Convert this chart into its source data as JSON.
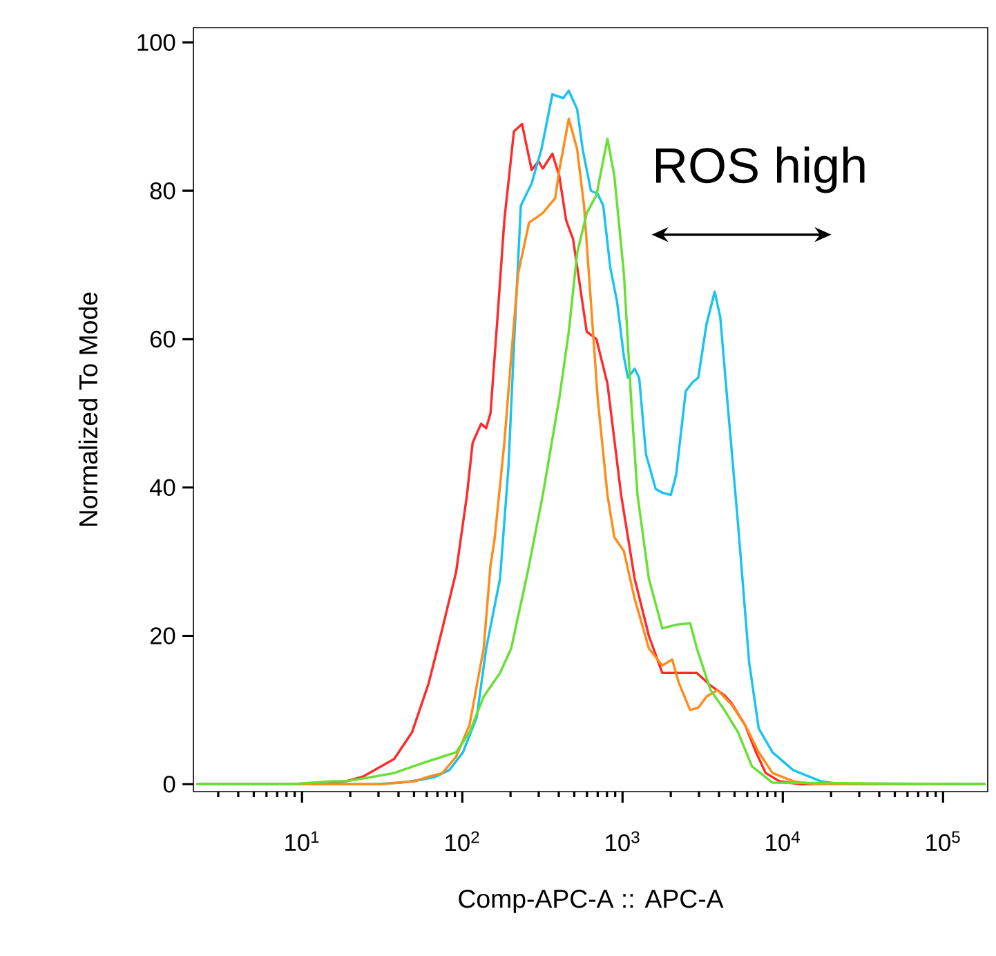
{
  "chart_data": {
    "type": "line",
    "xlabel": "Comp-APC-A :: APC-A",
    "ylabel": "Normalized To Mode",
    "log": "x",
    "xlim": [
      2.1,
      190000
    ],
    "ylim": [
      -1,
      102
    ],
    "xticks": [
      {
        "value": 10,
        "label": "10$^{1}$"
      },
      {
        "value": 100,
        "label": "10$^{2}$"
      },
      {
        "value": 1000,
        "label": "10$^{3}$"
      },
      {
        "value": 10000,
        "label": "10$^{4}$"
      },
      {
        "value": 100000,
        "label": "10$^{5}$"
      }
    ],
    "yticks": [
      0,
      20,
      40,
      60,
      80,
      100
    ],
    "marker": "none",
    "line_style": "solid",
    "annotations": [
      "ROS high"
    ],
    "series": [
      {
        "color": "#ff2a2a",
        "x": [
          2.2,
          12.7,
          18.8,
          23.9,
          37.6,
          48.6,
          61.7,
          75.2,
          91.5,
          107,
          116,
          131,
          141,
          150,
          166,
          183,
          210,
          236,
          271,
          299,
          318,
          365,
          403,
          445,
          491,
          598,
          687,
          805,
          980,
          1190,
          1460,
          1770,
          2910,
          3540,
          4320,
          4760,
          5810,
          6810,
          7820,
          9520,
          12800,
          184000
        ],
        "values": [
          0,
          0,
          0.4,
          1,
          3.4,
          7,
          13.6,
          21,
          28.6,
          39,
          46,
          48.6,
          48,
          50,
          63,
          76,
          88,
          89,
          82.8,
          84,
          83,
          85,
          82,
          76,
          73.5,
          61,
          60,
          54,
          39,
          27.7,
          20,
          15,
          15,
          13.3,
          12,
          11,
          8,
          4.3,
          1.5,
          0.4,
          0,
          0
        ]
      },
      {
        "color": "#19c3f0",
        "x": [
          2.2,
          27.9,
          41.5,
          55.8,
          68.1,
          82.9,
          101,
          123,
          141,
          172,
          194,
          210,
          232,
          271,
          312,
          365,
          427,
          462,
          521,
          564,
          635,
          700,
          758,
          838,
          925,
          1020,
          1080,
          1190,
          1270,
          1400,
          1610,
          1770,
          2000,
          2160,
          2480,
          2740,
          2970,
          3340,
          3760,
          4070,
          4580,
          5260,
          6170,
          7080,
          8630,
          11600,
          17200,
          23200,
          184000
        ],
        "values": [
          0,
          0,
          0.2,
          0.6,
          1,
          1.9,
          4.3,
          9,
          18.3,
          27.7,
          42.6,
          59,
          78,
          81,
          85.6,
          93,
          92.5,
          93.5,
          91,
          85.6,
          80,
          79.6,
          78,
          69.7,
          65,
          57.6,
          54.8,
          56,
          54.8,
          44.5,
          39.8,
          39.3,
          39,
          41.7,
          53,
          54.2,
          54.8,
          62,
          66.4,
          63,
          50,
          35,
          16.4,
          7.5,
          4.3,
          1.9,
          0.4,
          0,
          0
        ]
      },
      {
        "color": "#ff8c1a",
        "x": [
          2.2,
          30.8,
          50.6,
          61.7,
          75.2,
          91.5,
          111,
          136,
          150,
          159,
          183,
          202,
          223,
          261,
          318,
          380,
          403,
          462,
          521,
          575,
          635,
          700,
          805,
          889,
          1020,
          1190,
          1460,
          1770,
          2040,
          2250,
          2640,
          2970,
          3340,
          3910,
          4760,
          5810,
          7080,
          8630,
          11600,
          15600,
          184000
        ],
        "values": [
          0,
          0,
          0.4,
          1,
          1.5,
          3.7,
          8,
          18.3,
          29.5,
          33,
          46,
          57.6,
          68.8,
          75.7,
          77,
          79,
          82.8,
          89.7,
          85.6,
          78,
          65,
          52,
          39,
          33.3,
          31.4,
          25,
          18.3,
          16,
          16.8,
          13.6,
          10,
          10.3,
          11.8,
          12.7,
          10.8,
          8,
          4.3,
          1.5,
          0.4,
          0,
          0
        ]
      },
      {
        "color": "#66e033",
        "x": [
          2.2,
          8.5,
          15.5,
          18.8,
          27.9,
          37.6,
          55.8,
          75.2,
          91.5,
          111,
          136,
          172,
          202,
          256,
          318,
          403,
          462,
          521,
          598,
          687,
          805,
          889,
          1020,
          1130,
          1240,
          1460,
          1770,
          2160,
          2640,
          2910,
          3540,
          4320,
          5260,
          6420,
          8630,
          184000
        ],
        "values": [
          0,
          0,
          0.4,
          0.4,
          1,
          1.5,
          2.8,
          3.7,
          4.3,
          7,
          11.8,
          15,
          18.3,
          28.6,
          39,
          52,
          61,
          71.6,
          77,
          79.4,
          87,
          82,
          68.8,
          52,
          39,
          27.7,
          21,
          21.5,
          21.7,
          18.3,
          12.7,
          10,
          7,
          2.4,
          0.2,
          0
        ]
      }
    ]
  }
}
